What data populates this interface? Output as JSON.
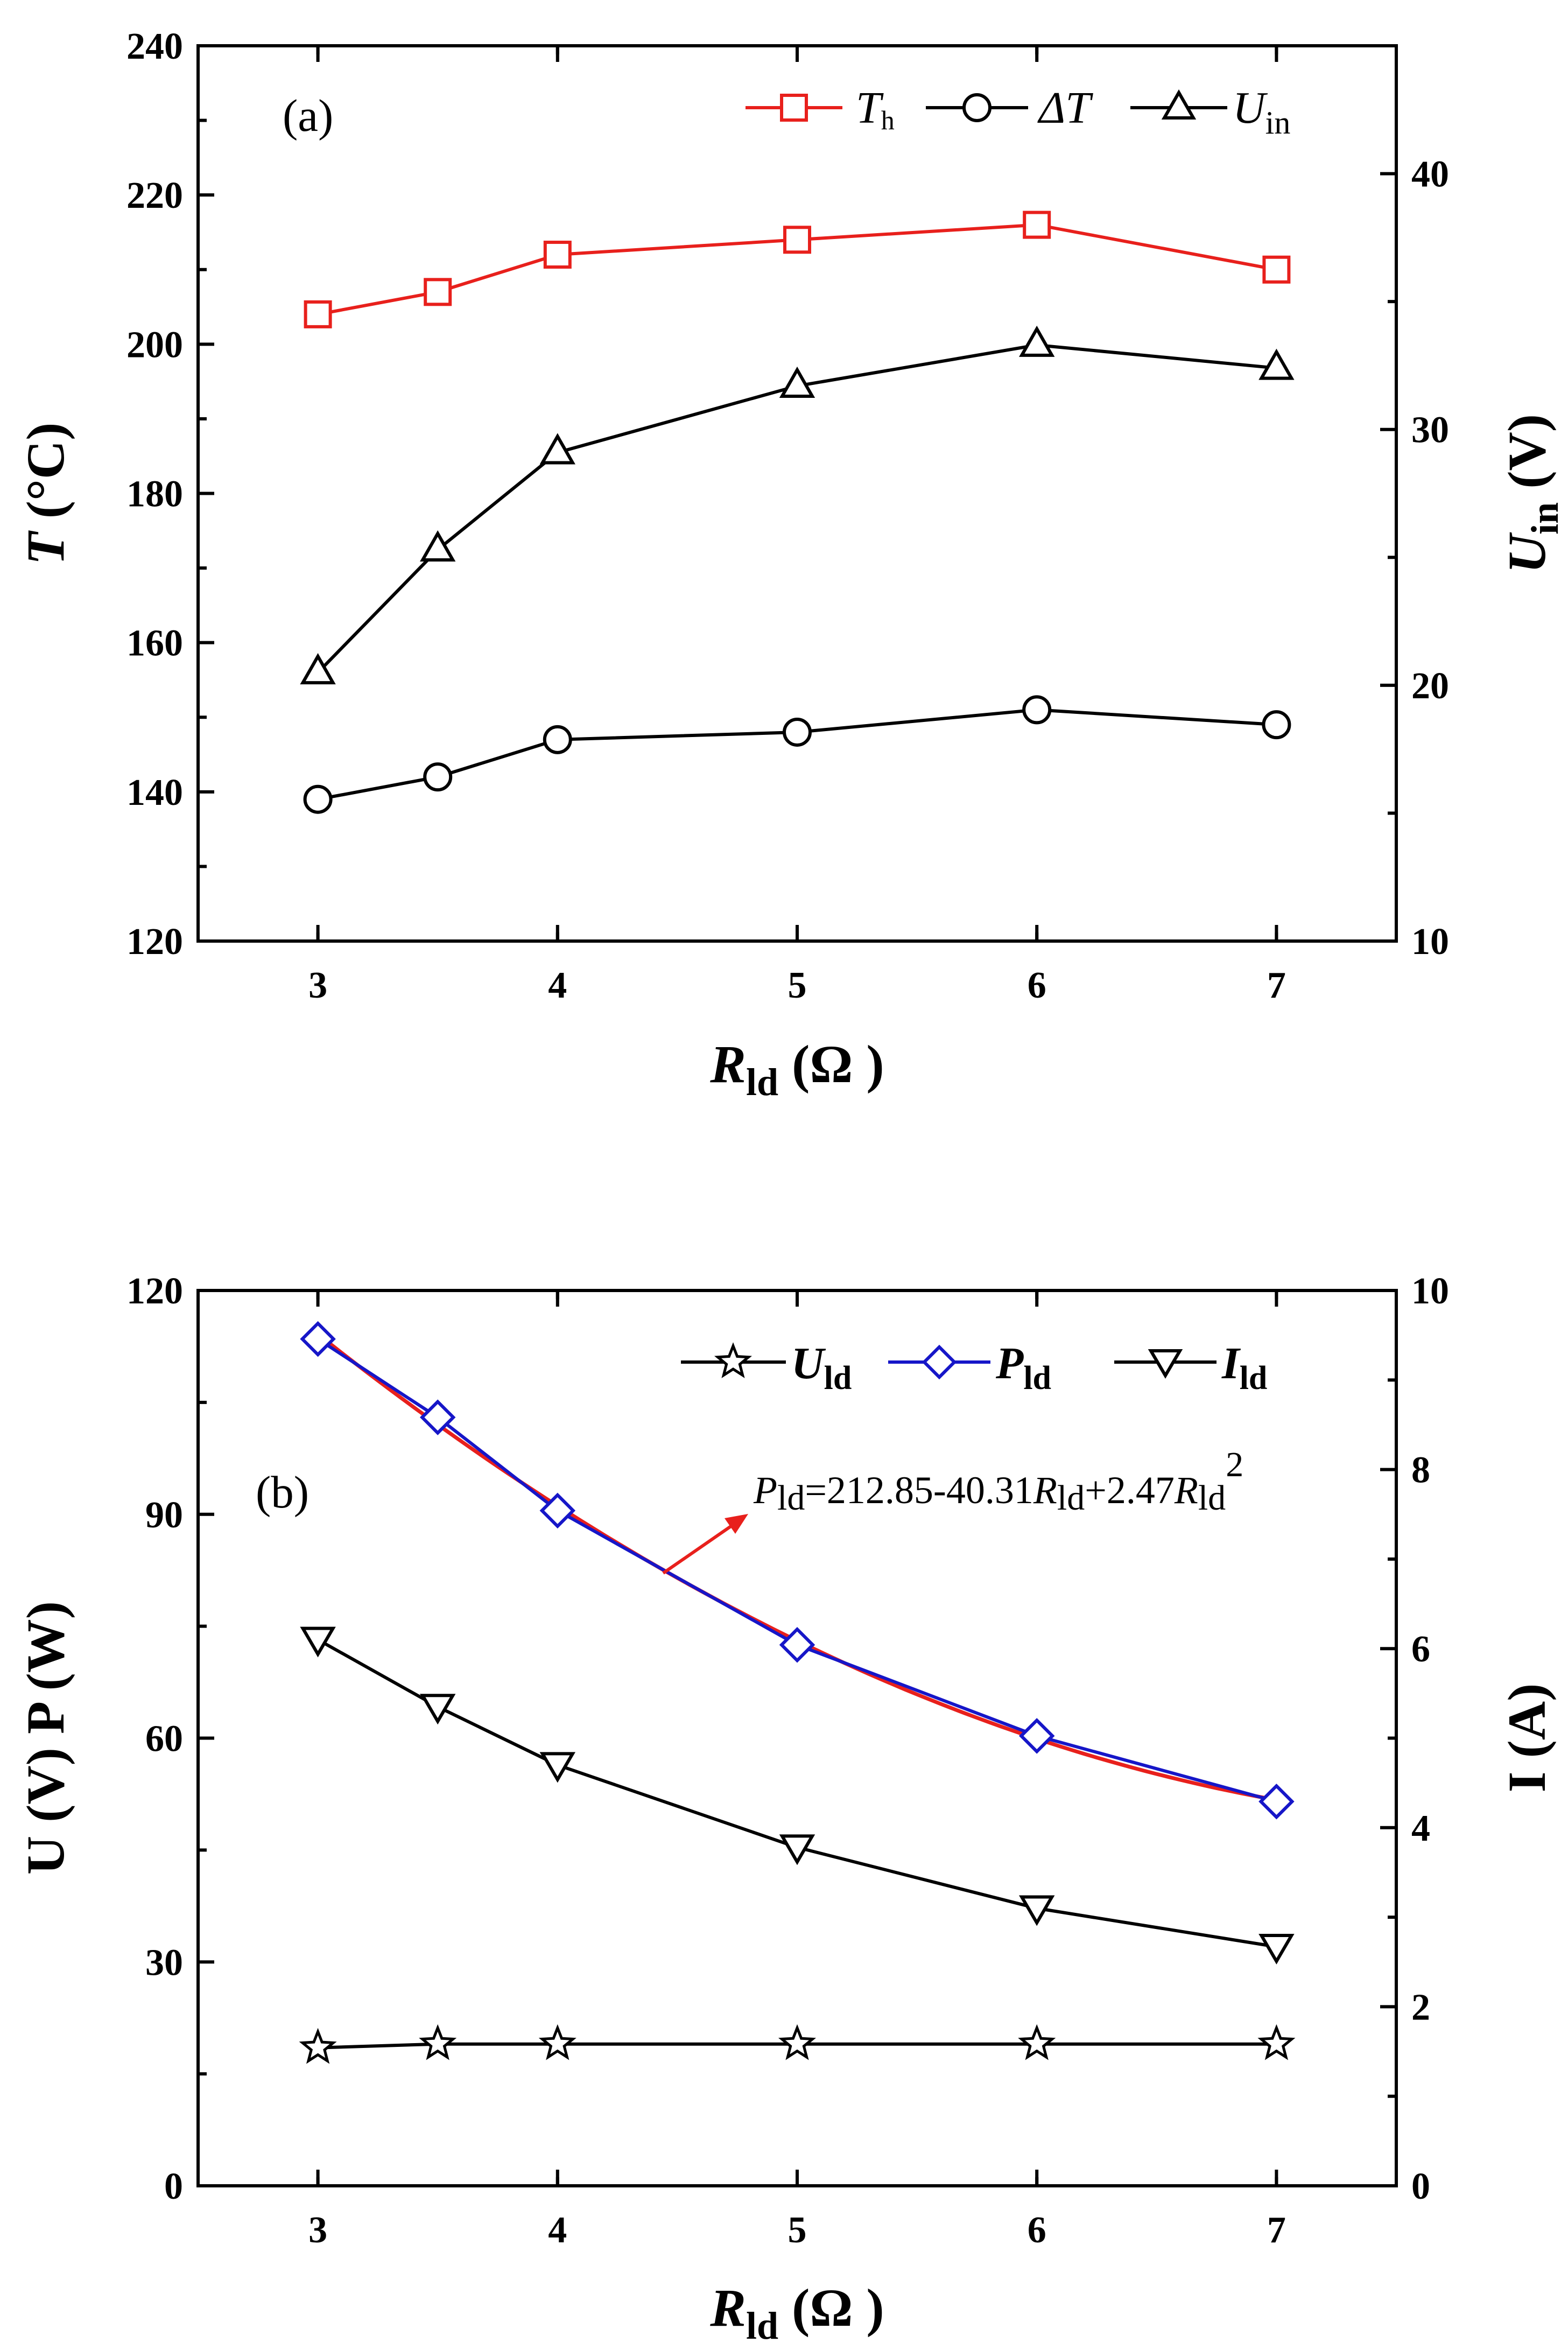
{
  "chart_data": [
    {
      "type": "line",
      "panel_label": "(a)",
      "x": [
        3,
        3.5,
        4,
        5,
        6,
        7
      ],
      "x_ticks": [
        "3",
        "4",
        "5",
        "6",
        "7"
      ],
      "xlim": [
        2.5,
        7.5
      ],
      "xlabel": {
        "main": "R",
        "sub": "ld",
        "unit": " (Ω )"
      },
      "ylabel_left": {
        "main": "T",
        "unit": " (°C)"
      },
      "ylim_left": [
        120,
        240
      ],
      "y_ticks_left": [
        "120",
        "140",
        "160",
        "180",
        "200",
        "220",
        "240"
      ],
      "ylabel_right": {
        "main": "U",
        "sub": "in",
        "unit": " (V)"
      },
      "ylim_right": [
        10,
        45
      ],
      "y_ticks_right": [
        "10",
        "20",
        "30",
        "40"
      ],
      "series": [
        {
          "name": "T_h",
          "legend": {
            "main": "T",
            "sub": "h"
          },
          "axis": "left",
          "marker": "square",
          "color": "#e8201c",
          "values": [
            204,
            207,
            212,
            214,
            216,
            210
          ]
        },
        {
          "name": "ΔT",
          "legend": {
            "main": "ΔT",
            "sub": ""
          },
          "axis": "left",
          "marker": "circle",
          "color": "#000000",
          "values": [
            139,
            142,
            147,
            148,
            151,
            149
          ]
        },
        {
          "name": "U_in",
          "legend": {
            "main": "U",
            "sub": "in"
          },
          "axis": "right",
          "marker": "triangle-up",
          "color": "#000000",
          "values": [
            20.5,
            25.3,
            29.1,
            31.7,
            33.3,
            32.4
          ]
        }
      ],
      "legend_position": "top-right"
    },
    {
      "type": "line",
      "panel_label": "(b)",
      "x": [
        3,
        3.5,
        4,
        5,
        6,
        7
      ],
      "x_ticks": [
        "3",
        "4",
        "5",
        "6",
        "7"
      ],
      "xlim": [
        2.5,
        7.5
      ],
      "xlabel": {
        "main": "R",
        "sub": "ld",
        "unit": " (Ω )"
      },
      "ylabel_left": {
        "text": "U (V)   P (W)"
      },
      "ylim_left": [
        0,
        120
      ],
      "y_ticks_left": [
        "0",
        "30",
        "60",
        "90",
        "120"
      ],
      "ylabel_right": {
        "text": "I (A)"
      },
      "ylim_right": [
        0,
        10
      ],
      "y_ticks_right": [
        "0",
        "2",
        "4",
        "6",
        "8",
        "10"
      ],
      "series": [
        {
          "name": "U_ld",
          "legend": {
            "main": "U",
            "sub": "ld"
          },
          "axis": "left",
          "marker": "star",
          "color": "#000000",
          "values": [
            18.5,
            19,
            19,
            19,
            19,
            19
          ]
        },
        {
          "name": "P_ld",
          "legend": {
            "main": "P",
            "sub": "ld"
          },
          "axis": "left",
          "marker": "diamond",
          "color": "#1616c8",
          "values": [
            113.5,
            103,
            90.5,
            72.5,
            60.3,
            51.5
          ]
        },
        {
          "name": "I_ld",
          "legend": {
            "main": "I",
            "sub": "ld"
          },
          "axis": "right",
          "marker": "triangle-down",
          "color": "#000000",
          "values": [
            6.1,
            5.35,
            4.7,
            3.78,
            3.1,
            2.67
          ]
        }
      ],
      "fit": {
        "color": "#e8201c",
        "coefficients": [
          212.85,
          -40.31,
          2.47
        ],
        "equation": {
          "p": "P",
          "ld": "ld",
          "eq1": "=212.85-40.31",
          "r": "R",
          "eq2": "+2.47",
          "sq": "2"
        }
      },
      "legend_position": "top-right"
    }
  ]
}
